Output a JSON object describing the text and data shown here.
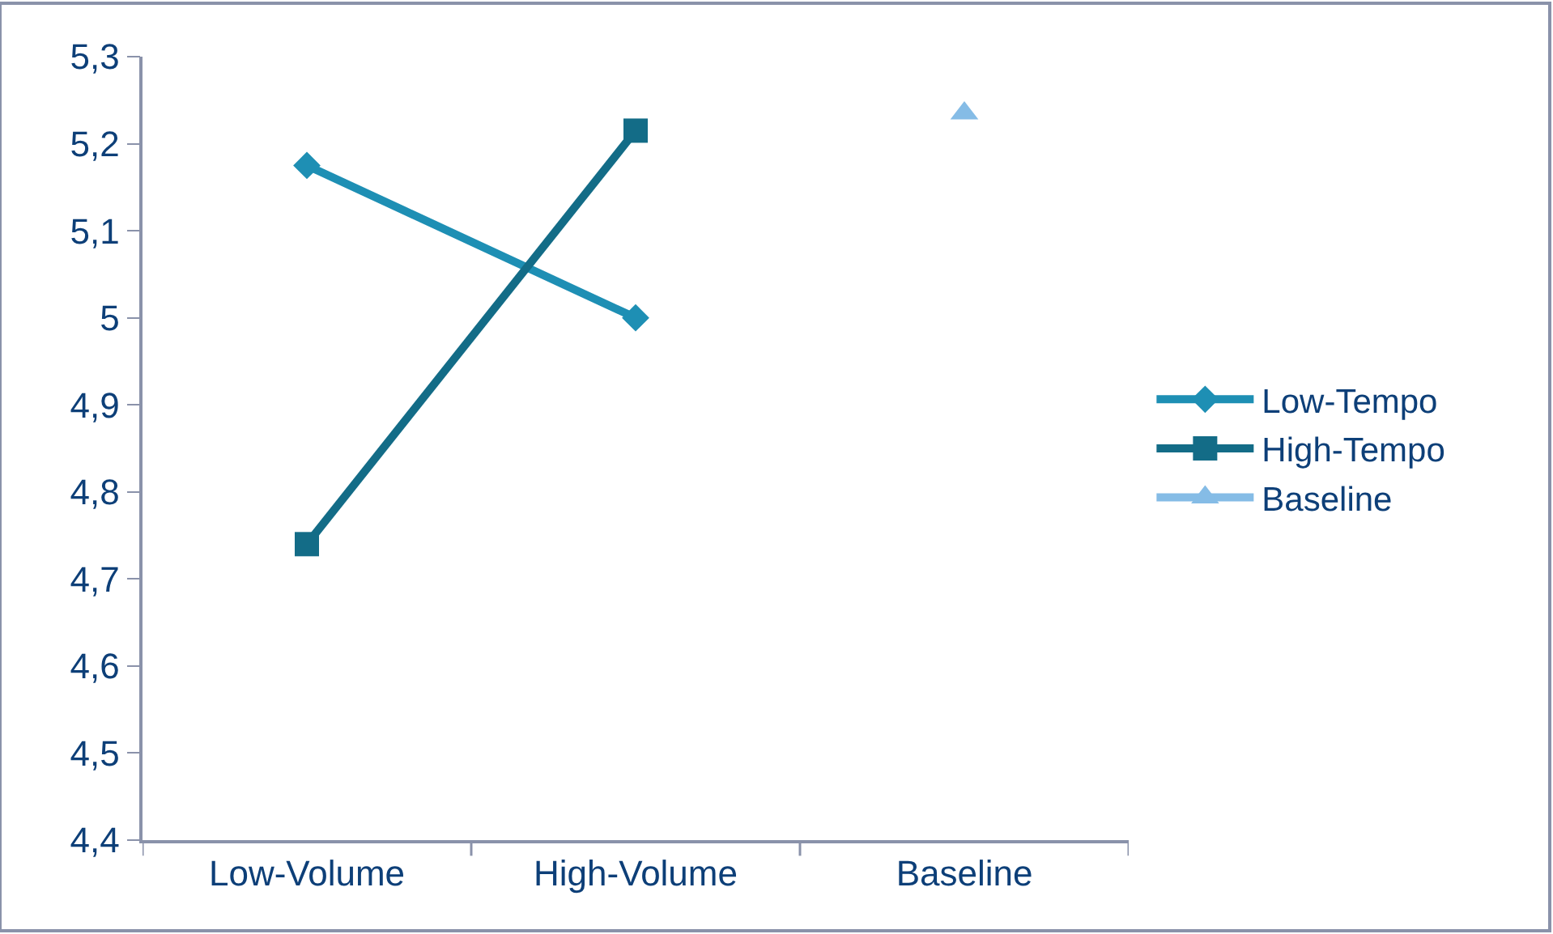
{
  "chart_data": {
    "type": "line",
    "categories": [
      "Low-Volume",
      "High-Volume",
      "Baseline"
    ],
    "series": [
      {
        "name": "Low-Tempo",
        "color": "#1e8fb4",
        "marker": "diamond",
        "values": [
          5.175,
          5.0,
          null
        ]
      },
      {
        "name": "High-Tempo",
        "color": "#136c87",
        "marker": "square",
        "values": [
          4.74,
          5.215,
          null
        ]
      },
      {
        "name": "Baseline",
        "color": "#85bce6",
        "marker": "triangle",
        "values": [
          null,
          null,
          5.235
        ]
      }
    ],
    "ylim": [
      4.4,
      5.3
    ],
    "yticks": [
      {
        "value": 4.4,
        "label": "4,4"
      },
      {
        "value": 4.5,
        "label": "4,5"
      },
      {
        "value": 4.6,
        "label": "4,6"
      },
      {
        "value": 4.7,
        "label": "4,7"
      },
      {
        "value": 4.8,
        "label": "4,8"
      },
      {
        "value": 4.9,
        "label": "4,9"
      },
      {
        "value": 5.0,
        "label": "5"
      },
      {
        "value": 5.1,
        "label": "5,1"
      },
      {
        "value": 5.2,
        "label": "5,2"
      },
      {
        "value": 5.3,
        "label": "5,3"
      }
    ],
    "legend": "right",
    "line_style": "solid"
  }
}
